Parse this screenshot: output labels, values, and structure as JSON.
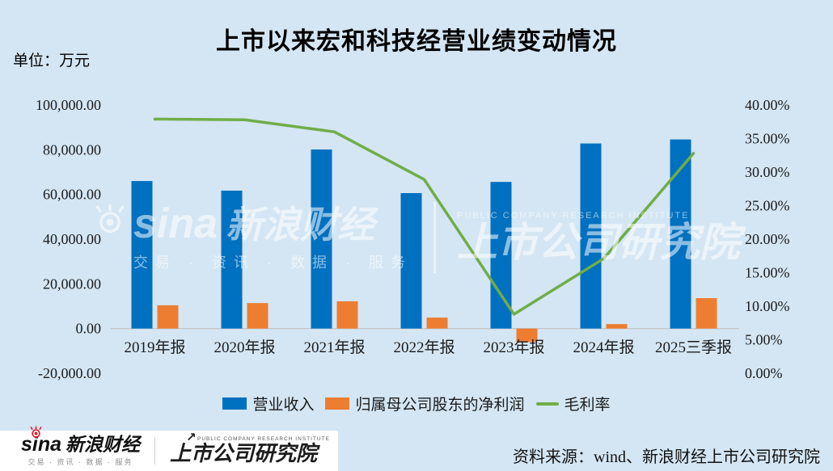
{
  "title": "上市以来宏和科技经营业绩变动情况",
  "unit_label": "单位：万元",
  "colors": {
    "background": "#D4E6F3",
    "bar_revenue": "#0070C0",
    "bar_net_profit": "#ED7D31",
    "line_gross_margin": "#70AD47",
    "axis_line": "#BFBFBF",
    "sina_red": "#E6162D"
  },
  "chart_data": {
    "type": "bar+line",
    "title": "上市以来宏和科技经营业绩变动情况",
    "unit": "万元",
    "grid": false,
    "legend_position": "bottom",
    "categories": [
      "2019年报",
      "2020年报",
      "2021年报",
      "2022年报",
      "2023年报",
      "2024年报",
      "2025三季报"
    ],
    "series": [
      {
        "key": "revenue",
        "name": "营业收入",
        "type": "bar",
        "axis": "left",
        "color": "#0070C0",
        "values": [
          66000,
          61700,
          80100,
          60600,
          65600,
          82800,
          84600
        ]
      },
      {
        "key": "net_profit",
        "name": "归属母公司股东的净利润",
        "type": "bar",
        "axis": "left",
        "color": "#ED7D31",
        "values": [
          10400,
          11400,
          12200,
          4900,
          -6000,
          2000,
          13600
        ]
      },
      {
        "key": "gross_margin",
        "name": "毛利率",
        "type": "line",
        "axis": "right",
        "color": "#70AD47",
        "unit": "%",
        "values": [
          37.9,
          37.8,
          36.0,
          28.9,
          8.8,
          17.1,
          32.8
        ]
      }
    ],
    "left_axis": {
      "min": -20000,
      "max": 100000,
      "step": 20000,
      "tick_labels": [
        "100,000.00",
        "80,000.00",
        "60,000.00",
        "40,000.00",
        "20,000.00",
        "0.00",
        "-20,000.00"
      ]
    },
    "right_axis": {
      "min": 0,
      "max": 40,
      "step": 5,
      "tick_labels": [
        "40.00%",
        "35.00%",
        "30.00%",
        "25.00%",
        "20.00%",
        "15.00%",
        "10.00%",
        "5.00%",
        "0.00%"
      ]
    }
  },
  "watermark": {
    "sina_wordmark": "sina",
    "sina_brand": "新浪财经",
    "sina_tagline": "交易 · 资讯 · 数据 · 服务",
    "institute_en": "PUBLIC COMPANY RESEARCH INSTITUTE",
    "institute_name": "上市公司研究院"
  },
  "footer": {
    "sina_wordmark": "sina",
    "sina_brand": "新浪财经",
    "sina_tagline": "交易 · 资讯 · 数据 · 服务",
    "institute_en": "PUBLIC COMPANY RESEARCH INSTITUTE",
    "institute_name": "上市公司研究院",
    "source_text": "资料来源：wind、新浪财经上市公司研究院"
  }
}
